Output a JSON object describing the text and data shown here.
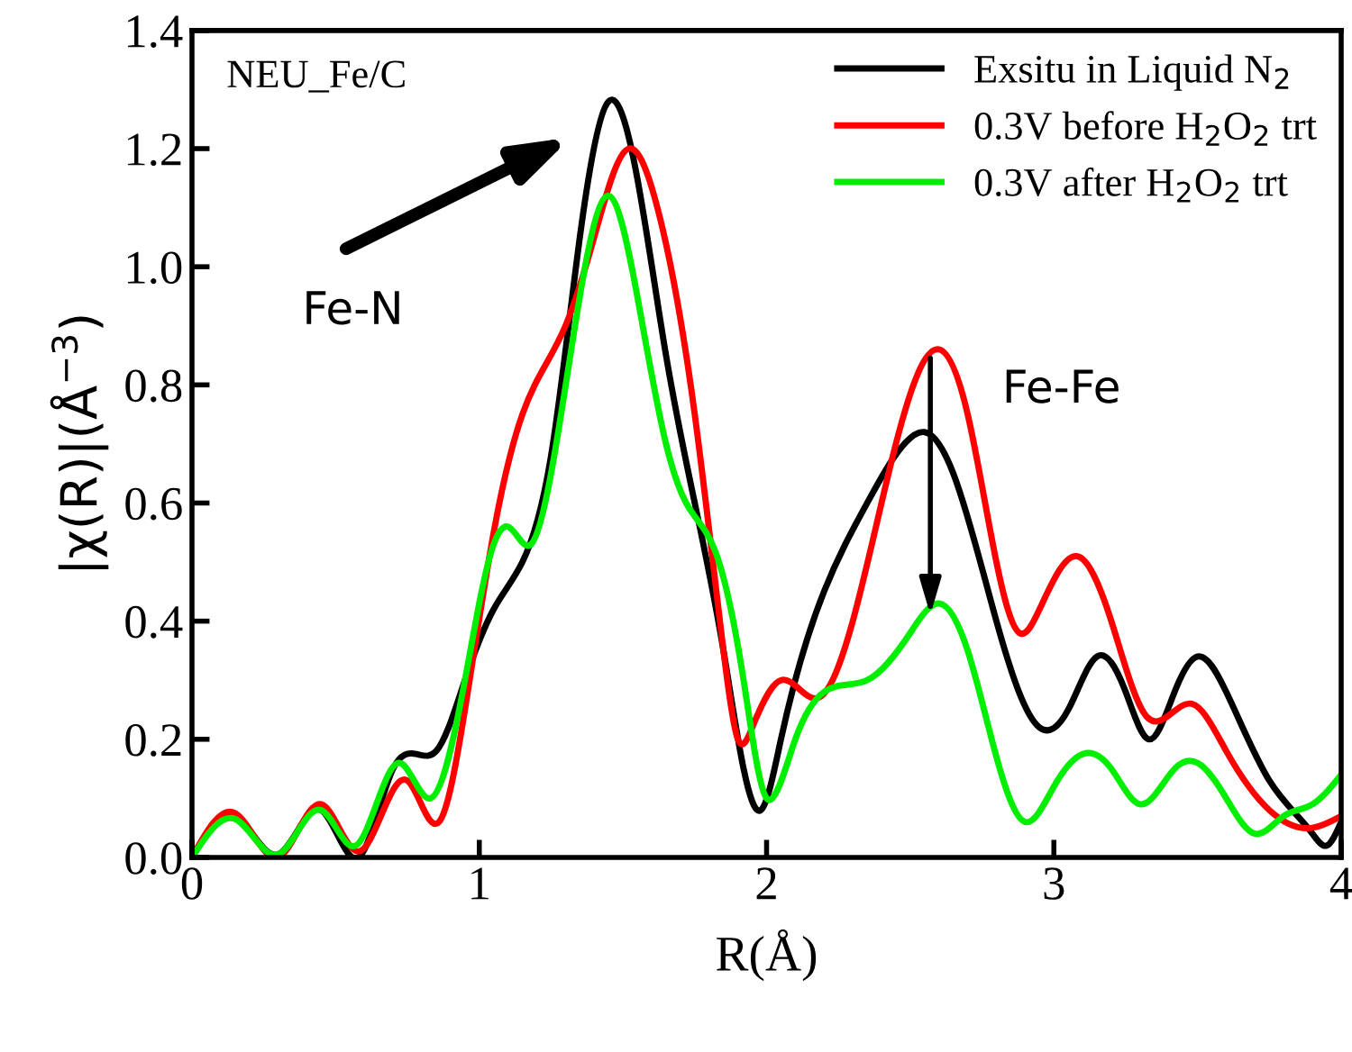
{
  "chart_data": {
    "type": "line",
    "xlabel": "R(Å)",
    "ylabel": "|χ(R)|(Å$^{−3}$)",
    "xlim": [
      0,
      4
    ],
    "ylim": [
      0,
      1.4
    ],
    "xticks": [
      0,
      1,
      2,
      3,
      4
    ],
    "yticks": [
      {
        "value": 0,
        "label": "0.0"
      },
      {
        "value": 0.2,
        "label": "0.2"
      },
      {
        "value": 0.4,
        "label": "0.4"
      },
      {
        "value": 0.6,
        "label": "0.6"
      },
      {
        "value": 0.8,
        "label": "0.8"
      },
      {
        "value": 1.0,
        "label": "1.0"
      },
      {
        "value": 1.2,
        "label": "1.2"
      },
      {
        "value": 1.4,
        "label": "1.4"
      }
    ],
    "grid": false,
    "legend": "top right",
    "marker": "none",
    "line_style": "solid",
    "annotations": [
      "NEU_Fe/C",
      "Fe-N",
      "Fe-Fe"
    ],
    "series": [
      {
        "name": "Exsitu in Liquid N$_{2}$",
        "color": "#000000",
        "x": [
          0,
          0.15,
          0.3,
          0.45,
          0.58,
          0.7,
          0.78,
          0.85,
          0.95,
          1.05,
          1.15,
          1.25,
          1.35,
          1.45,
          1.55,
          1.65,
          1.75,
          1.85,
          1.92,
          1.98,
          2.05,
          2.2,
          2.35,
          2.5,
          2.55,
          2.65,
          2.8,
          2.95,
          3.05,
          3.15,
          3.25,
          3.33,
          3.42,
          3.5,
          3.6,
          3.75,
          3.9,
          3.95,
          4.0
        ],
        "values": [
          0,
          0.07,
          0.005,
          0.08,
          0.0,
          0.15,
          0.175,
          0.18,
          0.3,
          0.42,
          0.5,
          0.68,
          1.05,
          1.28,
          1.15,
          0.85,
          0.6,
          0.35,
          0.15,
          0.08,
          0.2,
          0.45,
          0.6,
          0.71,
          0.72,
          0.65,
          0.4,
          0.22,
          0.25,
          0.34,
          0.28,
          0.2,
          0.28,
          0.34,
          0.28,
          0.13,
          0.04,
          0.02,
          0.06
        ]
      },
      {
        "name": "0.3V before H$_{2}$O$_{2}$ trt",
        "color": "#ff0000",
        "x": [
          0,
          0.15,
          0.3,
          0.45,
          0.58,
          0.75,
          0.86,
          0.95,
          1.05,
          1.15,
          1.3,
          1.4,
          1.52,
          1.62,
          1.75,
          1.85,
          1.9,
          1.95,
          2.05,
          2.18,
          2.3,
          2.45,
          2.6,
          2.7,
          2.8,
          2.88,
          2.95,
          3.08,
          3.2,
          3.32,
          3.48,
          3.6,
          3.75,
          3.9,
          4.0
        ],
        "values": [
          0,
          0.075,
          0.0,
          0.09,
          0.01,
          0.13,
          0.06,
          0.25,
          0.55,
          0.75,
          0.9,
          1.05,
          1.2,
          1.1,
          0.75,
          0.35,
          0.2,
          0.22,
          0.3,
          0.27,
          0.4,
          0.7,
          0.86,
          0.75,
          0.5,
          0.38,
          0.42,
          0.51,
          0.4,
          0.24,
          0.26,
          0.18,
          0.08,
          0.05,
          0.07
        ]
      },
      {
        "name": "0.3V after H$_{2}$O$_{2}$ trt",
        "color": "#00ee00",
        "x": [
          0,
          0.15,
          0.3,
          0.45,
          0.57,
          0.72,
          0.83,
          0.95,
          1.05,
          1.1,
          1.18,
          1.25,
          1.35,
          1.45,
          1.55,
          1.65,
          1.72,
          1.82,
          1.92,
          2.0,
          2.02,
          2.1,
          2.2,
          2.35,
          2.5,
          2.6,
          2.7,
          2.8,
          2.9,
          3.0,
          3.1,
          3.2,
          3.3,
          3.42,
          3.5,
          3.6,
          3.7,
          3.8,
          3.9,
          4.0
        ],
        "values": [
          0,
          0.065,
          0.005,
          0.08,
          0.02,
          0.16,
          0.1,
          0.3,
          0.53,
          0.56,
          0.53,
          0.65,
          0.95,
          1.12,
          0.95,
          0.7,
          0.6,
          0.52,
          0.3,
          0.1,
          0.1,
          0.2,
          0.28,
          0.3,
          0.38,
          0.43,
          0.35,
          0.17,
          0.06,
          0.12,
          0.175,
          0.15,
          0.09,
          0.15,
          0.16,
          0.1,
          0.04,
          0.07,
          0.09,
          0.14
        ]
      }
    ]
  }
}
